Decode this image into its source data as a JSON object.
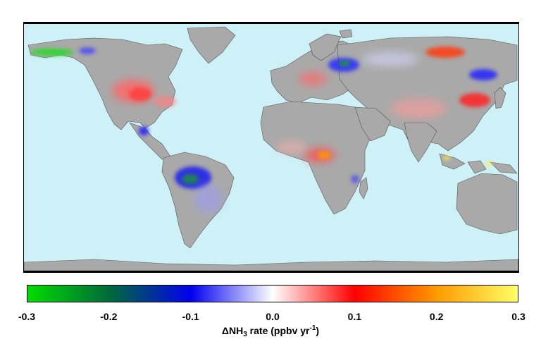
{
  "map": {
    "ocean_color": "#cdf1f7",
    "land_color": "#a9a9a9",
    "projection": "equirectangular, global"
  },
  "colorbar": {
    "colors": [
      "#00dd00",
      "#006a3a",
      "#0000ee",
      "#ffffff",
      "#ff0000",
      "#ff9900",
      "#ffff66"
    ],
    "ticks": [
      "-0.3",
      "-0.2",
      "-0.1",
      "0.0",
      "0.1",
      "0.2",
      "0.3"
    ],
    "min": -0.3,
    "max": 0.3,
    "label_symbol": "ΔNH",
    "label_subscript": "3",
    "label_mid": " rate (ppbv yr",
    "label_superscript": "-1",
    "label_end": ")"
  }
}
